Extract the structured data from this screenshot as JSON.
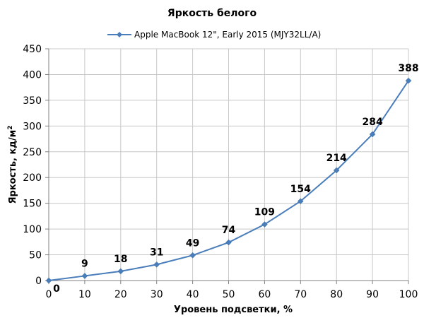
{
  "chart_data": {
    "type": "line",
    "title": "Яркость белого",
    "xlabel": "Уровень подсветки, %",
    "ylabel": "Яркость, кд/м²",
    "ylabel_main": "Яркость, кд/м",
    "ylabel_sup": "2",
    "x": [
      0,
      10,
      20,
      30,
      40,
      50,
      60,
      70,
      80,
      90,
      100
    ],
    "xlim": [
      0,
      100
    ],
    "ylim": [
      0,
      450
    ],
    "x_ticks": [
      "0",
      "10",
      "20",
      "30",
      "40",
      "50",
      "60",
      "70",
      "80",
      "90",
      "100"
    ],
    "y_ticks": [
      "0",
      "50",
      "100",
      "150",
      "200",
      "250",
      "300",
      "350",
      "400",
      "450"
    ],
    "grid": true,
    "legend_position": "top",
    "series": [
      {
        "name": "Apple MacBook 12\", Early 2015 (MJY32LL/A)",
        "color": "#4a7ebb",
        "marker": "diamond",
        "values": [
          0,
          9,
          18,
          31,
          49,
          74,
          109,
          154,
          214,
          284,
          388
        ],
        "labels": [
          "0",
          "9",
          "18",
          "31",
          "49",
          "74",
          "109",
          "154",
          "214",
          "284",
          "388"
        ]
      }
    ]
  }
}
